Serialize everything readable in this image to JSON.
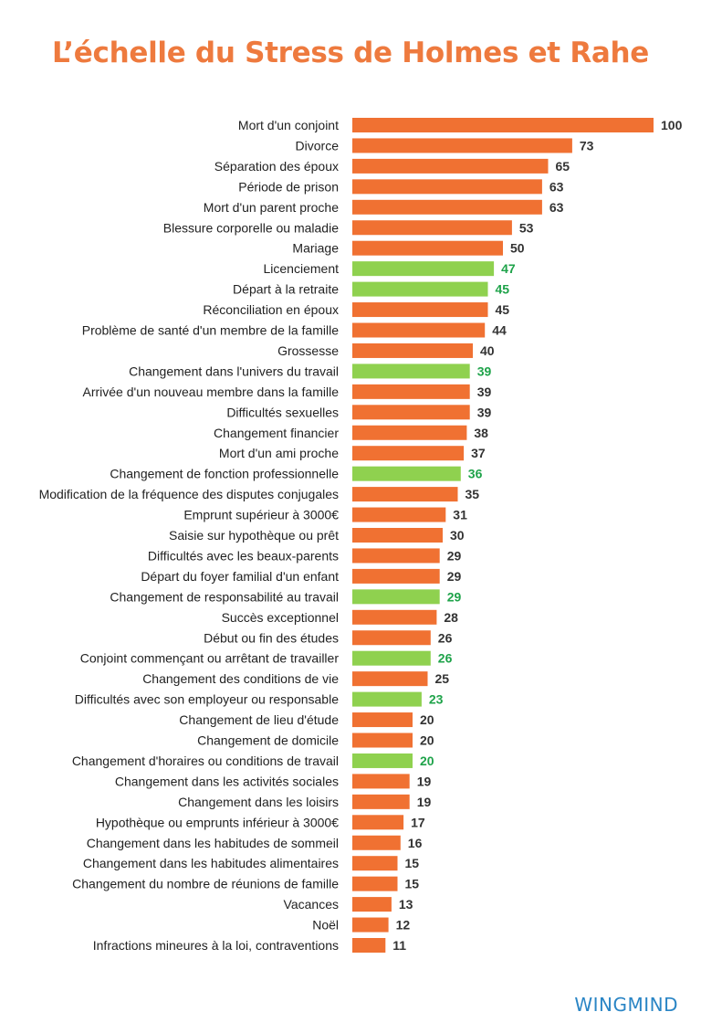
{
  "chart_data": {
    "type": "bar",
    "orientation": "horizontal",
    "title": "L’échelle du Stress de Holmes et Rahe",
    "xlabel": "",
    "ylabel": "",
    "xlim": [
      0,
      100
    ],
    "grid": false,
    "legend": null,
    "colors": {
      "default": "#f07132",
      "work": "#8fd14f",
      "label_default": "#333333",
      "label_work": "#1fa34a"
    },
    "categories": [
      "Mort d'un conjoint",
      "Divorce",
      "Séparation des époux",
      "Période de prison",
      "Mort d'un parent proche",
      "Blessure corporelle ou maladie",
      "Mariage",
      "Licenciement",
      "Départ à la retraite",
      "Réconciliation en époux",
      "Problème de santé d'un membre de la famille",
      "Grossesse",
      "Changement dans l'univers du travail",
      "Arrivée d'un nouveau membre dans la famille",
      "Difficultés sexuelles",
      "Changement financier",
      "Mort d'un ami proche",
      "Changement de fonction professionnelle",
      "Modification de la fréquence des disputes conjugales",
      "Emprunt supérieur à 3000€",
      "Saisie sur hypothèque ou prêt",
      "Difficultés avec les beaux-parents",
      "Départ du foyer familial d'un enfant",
      "Changement de responsabilité au travail",
      "Succès exceptionnel",
      "Début ou fin des études",
      "Conjoint commençant ou arrêtant de travailler",
      "Changement des conditions de vie",
      "Difficultés avec son employeur ou responsable",
      "Changement de lieu d'étude",
      "Changement de domicile",
      "Changement d'horaires ou conditions de travail",
      "Changement dans les activités sociales",
      "Changement dans les loisirs",
      "Hypothèque ou emprunts inférieur à 3000€",
      "Changement dans les habitudes de sommeil",
      "Changement dans les habitudes alimentaires",
      "Changement du nombre de réunions de famille",
      "Vacances",
      "Noël",
      "Infractions mineures à la loi, contraventions"
    ],
    "values": [
      100,
      73,
      65,
      63,
      63,
      53,
      50,
      47,
      45,
      45,
      44,
      40,
      39,
      39,
      39,
      38,
      37,
      36,
      35,
      31,
      30,
      29,
      29,
      29,
      28,
      26,
      26,
      25,
      23,
      20,
      20,
      20,
      19,
      19,
      17,
      16,
      15,
      15,
      13,
      12,
      11
    ],
    "highlight_work": [
      false,
      false,
      false,
      false,
      false,
      false,
      false,
      true,
      true,
      false,
      false,
      false,
      true,
      false,
      false,
      false,
      false,
      true,
      false,
      false,
      false,
      false,
      false,
      true,
      false,
      false,
      true,
      false,
      true,
      false,
      false,
      true,
      false,
      false,
      false,
      false,
      false,
      false,
      false,
      false,
      false
    ]
  },
  "brand": "WINGMIND"
}
